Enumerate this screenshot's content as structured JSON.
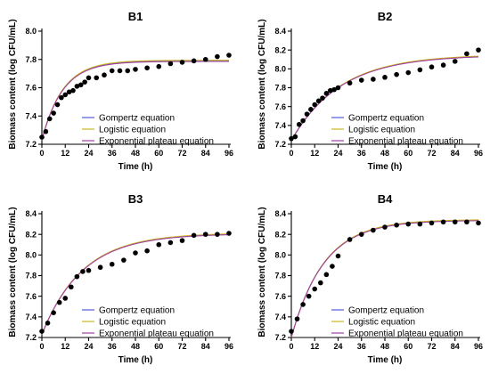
{
  "chart_data": [
    {
      "type": "scatter",
      "title": "B1",
      "xlabel": "Time (h)",
      "ylabel": "Biomass content (log CFU/mL)",
      "xlim": [
        0,
        96
      ],
      "ylim": [
        7.2,
        8.0
      ],
      "xticks": [
        "0",
        "12",
        "24",
        "36",
        "48",
        "60",
        "72",
        "84",
        "96"
      ],
      "yticks": [
        "7.2",
        "7.4",
        "7.6",
        "7.8",
        "8.0"
      ],
      "observed": [
        {
          "x": 0,
          "y": 7.25
        },
        {
          "x": 2,
          "y": 7.29
        },
        {
          "x": 4,
          "y": 7.38
        },
        {
          "x": 6,
          "y": 7.42
        },
        {
          "x": 8,
          "y": 7.48
        },
        {
          "x": 10,
          "y": 7.53
        },
        {
          "x": 12,
          "y": 7.55
        },
        {
          "x": 14,
          "y": 7.57
        },
        {
          "x": 16,
          "y": 7.58
        },
        {
          "x": 18,
          "y": 7.61
        },
        {
          "x": 20,
          "y": 7.62
        },
        {
          "x": 22,
          "y": 7.64
        },
        {
          "x": 24,
          "y": 7.67
        },
        {
          "x": 28,
          "y": 7.67
        },
        {
          "x": 32,
          "y": 7.69
        },
        {
          "x": 36,
          "y": 7.72
        },
        {
          "x": 40,
          "y": 7.72
        },
        {
          "x": 44,
          "y": 7.72
        },
        {
          "x": 48,
          "y": 7.73
        },
        {
          "x": 54,
          "y": 7.74
        },
        {
          "x": 60,
          "y": 7.75
        },
        {
          "x": 66,
          "y": 7.77
        },
        {
          "x": 72,
          "y": 7.78
        },
        {
          "x": 78,
          "y": 7.79
        },
        {
          "x": 84,
          "y": 7.8
        },
        {
          "x": 90,
          "y": 7.82
        },
        {
          "x": 96,
          "y": 7.83
        }
      ],
      "fit": {
        "y0": 7.23,
        "ymax": 7.79,
        "k": 0.0935
      },
      "legend": [
        "Gompertz equation",
        "Logistic equation",
        "Exponential plateau equation"
      ],
      "legend_position": "bottom-center"
    },
    {
      "type": "scatter",
      "title": "B2",
      "xlabel": "Time (h)",
      "ylabel": "Biomass content (log CFU/mL)",
      "xlim": [
        0,
        96
      ],
      "ylim": [
        7.2,
        8.4
      ],
      "xticks": [
        "0",
        "12",
        "24",
        "36",
        "48",
        "60",
        "72",
        "84",
        "96"
      ],
      "yticks": [
        "7.2",
        "7.4",
        "7.6",
        "7.8",
        "8.0",
        "8.2",
        "8.4"
      ],
      "observed": [
        {
          "x": 0,
          "y": 7.26
        },
        {
          "x": 2,
          "y": 7.28
        },
        {
          "x": 4,
          "y": 7.41
        },
        {
          "x": 6,
          "y": 7.45
        },
        {
          "x": 8,
          "y": 7.52
        },
        {
          "x": 10,
          "y": 7.57
        },
        {
          "x": 12,
          "y": 7.62
        },
        {
          "x": 14,
          "y": 7.66
        },
        {
          "x": 16,
          "y": 7.69
        },
        {
          "x": 18,
          "y": 7.74
        },
        {
          "x": 20,
          "y": 7.77
        },
        {
          "x": 22,
          "y": 7.78
        },
        {
          "x": 24,
          "y": 7.8
        },
        {
          "x": 30,
          "y": 7.85
        },
        {
          "x": 36,
          "y": 7.88
        },
        {
          "x": 42,
          "y": 7.89
        },
        {
          "x": 48,
          "y": 7.91
        },
        {
          "x": 54,
          "y": 7.94
        },
        {
          "x": 60,
          "y": 7.96
        },
        {
          "x": 66,
          "y": 7.99
        },
        {
          "x": 72,
          "y": 8.02
        },
        {
          "x": 78,
          "y": 8.04
        },
        {
          "x": 84,
          "y": 8.08
        },
        {
          "x": 90,
          "y": 8.16
        },
        {
          "x": 96,
          "y": 8.2
        }
      ],
      "fit": {
        "y0": 7.24,
        "ymax": 8.15,
        "k": 0.04
      },
      "legend": [
        "Gompertz equation",
        "Logistic equation",
        "Exponential plateau equation"
      ],
      "legend_position": "bottom-right"
    },
    {
      "type": "scatter",
      "title": "B3",
      "xlabel": "Time (h)",
      "ylabel": "Biomass content (log CFU/mL)",
      "xlim": [
        0,
        96
      ],
      "ylim": [
        7.2,
        8.4
      ],
      "xticks": [
        "0",
        "12",
        "24",
        "36",
        "48",
        "60",
        "72",
        "84",
        "96"
      ],
      "yticks": [
        "7.2",
        "7.4",
        "7.6",
        "7.8",
        "8.0",
        "8.2",
        "8.4"
      ],
      "observed": [
        {
          "x": 0,
          "y": 7.26
        },
        {
          "x": 3,
          "y": 7.34
        },
        {
          "x": 6,
          "y": 7.44
        },
        {
          "x": 9,
          "y": 7.54
        },
        {
          "x": 12,
          "y": 7.58
        },
        {
          "x": 15,
          "y": 7.69
        },
        {
          "x": 18,
          "y": 7.79
        },
        {
          "x": 21,
          "y": 7.84
        },
        {
          "x": 24,
          "y": 7.85
        },
        {
          "x": 30,
          "y": 7.88
        },
        {
          "x": 36,
          "y": 7.91
        },
        {
          "x": 42,
          "y": 7.95
        },
        {
          "x": 48,
          "y": 8.02
        },
        {
          "x": 54,
          "y": 8.04
        },
        {
          "x": 60,
          "y": 8.1
        },
        {
          "x": 66,
          "y": 8.12
        },
        {
          "x": 72,
          "y": 8.14
        },
        {
          "x": 78,
          "y": 8.19
        },
        {
          "x": 84,
          "y": 8.2
        },
        {
          "x": 90,
          "y": 8.2
        },
        {
          "x": 96,
          "y": 8.21
        }
      ],
      "fit": {
        "y0": 7.23,
        "ymax": 8.21,
        "k": 0.048
      },
      "legend": [
        "Gompertz equation",
        "Logistic equation",
        "Exponential plateau equation"
      ],
      "legend_position": "bottom-center"
    },
    {
      "type": "scatter",
      "title": "B4",
      "xlabel": "Time (h)",
      "ylabel": "Biomass content (log CFU/mL)",
      "xlim": [
        0,
        96
      ],
      "ylim": [
        7.2,
        8.4
      ],
      "xticks": [
        "0",
        "12",
        "24",
        "36",
        "48",
        "60",
        "72",
        "84",
        "96"
      ],
      "yticks": [
        "7.2",
        "7.4",
        "7.6",
        "7.8",
        "8.0",
        "8.2",
        "8.4"
      ],
      "observed": [
        {
          "x": 0,
          "y": 7.26
        },
        {
          "x": 3,
          "y": 7.38
        },
        {
          "x": 6,
          "y": 7.52
        },
        {
          "x": 9,
          "y": 7.6
        },
        {
          "x": 12,
          "y": 7.67
        },
        {
          "x": 15,
          "y": 7.73
        },
        {
          "x": 18,
          "y": 7.81
        },
        {
          "x": 21,
          "y": 7.89
        },
        {
          "x": 24,
          "y": 7.99
        },
        {
          "x": 30,
          "y": 8.15
        },
        {
          "x": 36,
          "y": 8.2
        },
        {
          "x": 42,
          "y": 8.24
        },
        {
          "x": 48,
          "y": 8.27
        },
        {
          "x": 54,
          "y": 8.29
        },
        {
          "x": 60,
          "y": 8.3
        },
        {
          "x": 66,
          "y": 8.3
        },
        {
          "x": 72,
          "y": 8.31
        },
        {
          "x": 78,
          "y": 8.32
        },
        {
          "x": 84,
          "y": 8.32
        },
        {
          "x": 90,
          "y": 8.32
        },
        {
          "x": 96,
          "y": 8.31
        }
      ],
      "fit": {
        "y0": 7.2,
        "ymax": 8.34,
        "k": 0.06
      },
      "legend": [
        "Gompertz equation",
        "Logistic equation",
        "Exponential plateau equation"
      ],
      "legend_position": "bottom-right"
    }
  ],
  "colors": {
    "gompertz": "#4f5bd5",
    "logistic": "#c8b820",
    "exponential": "#a03fa0",
    "points": "#000000"
  }
}
